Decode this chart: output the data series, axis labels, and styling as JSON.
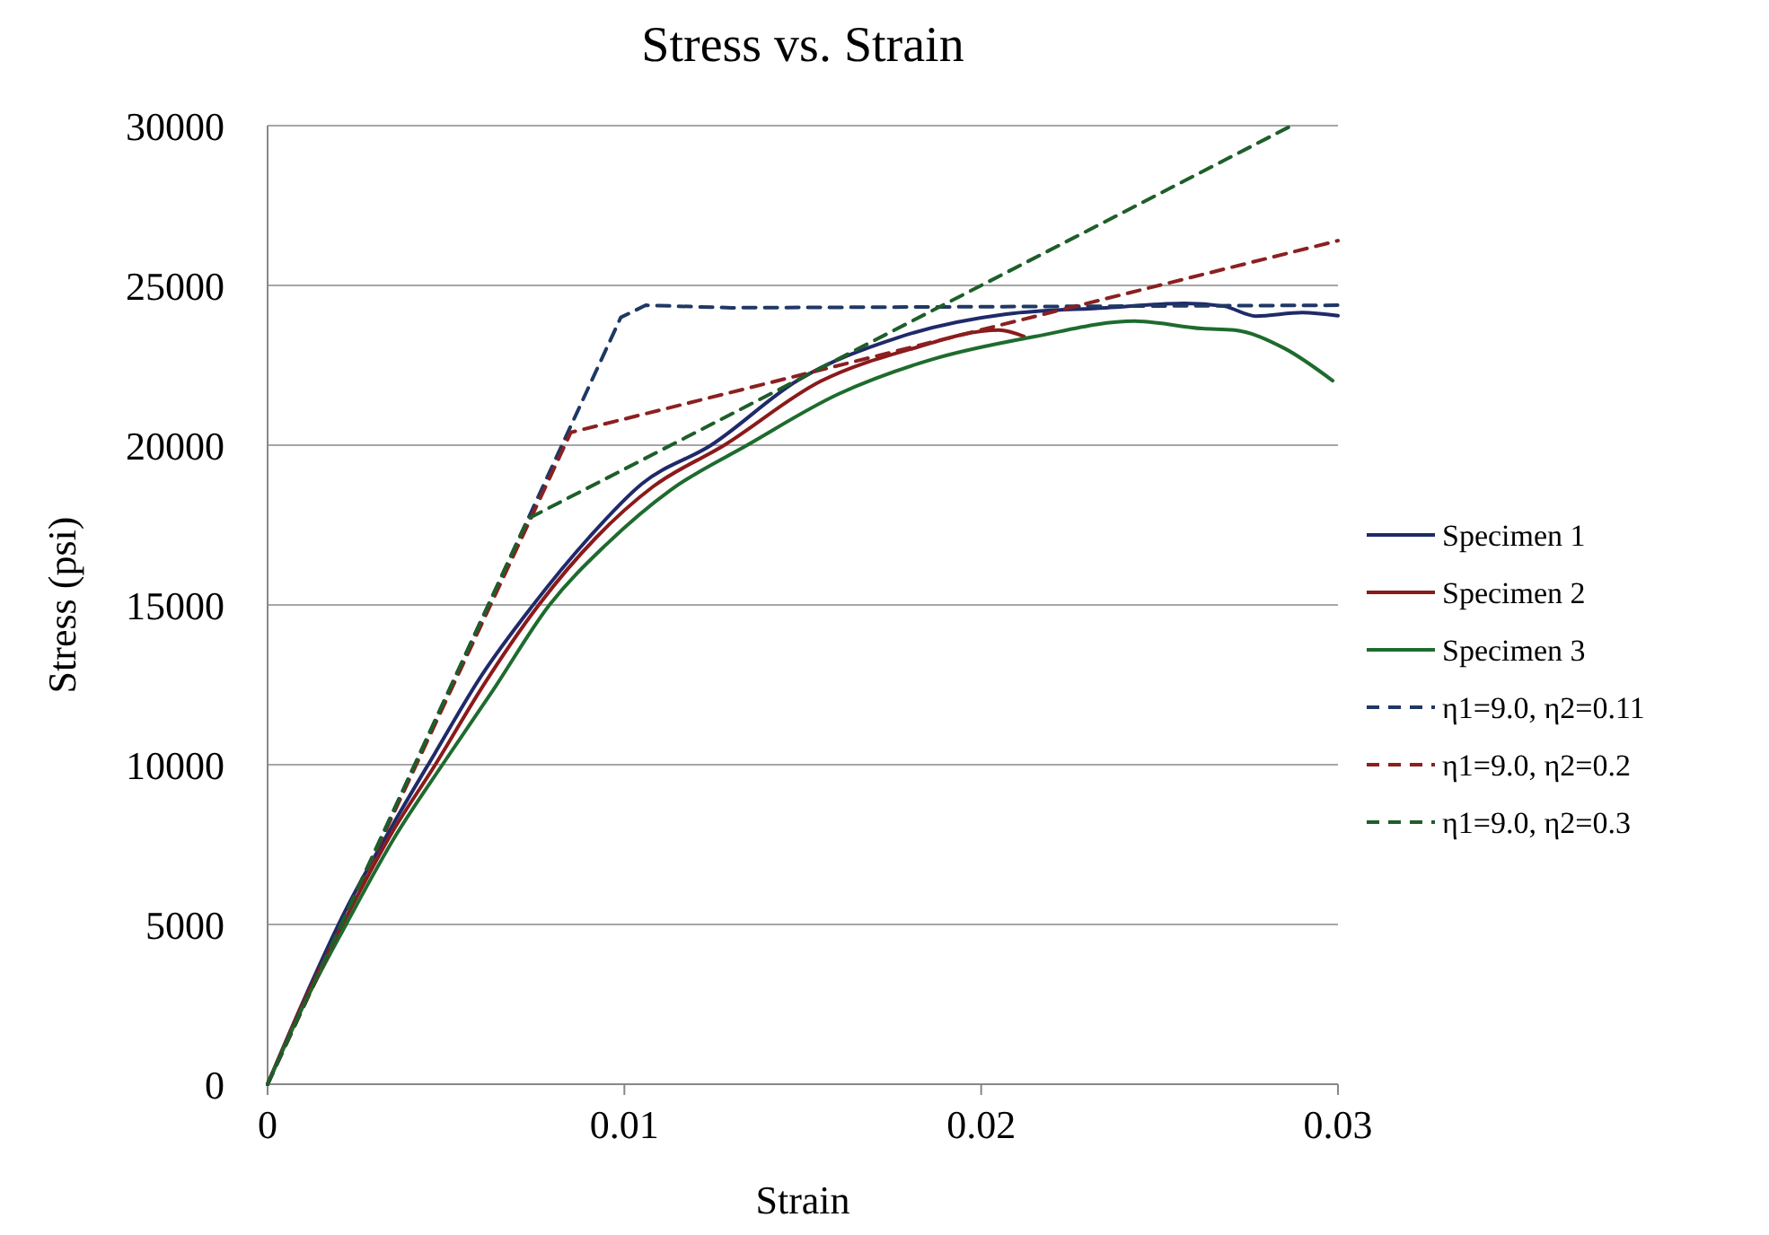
{
  "chart_data": {
    "type": "line",
    "title": "Stress vs. Strain",
    "xlabel": "Strain",
    "ylabel": "Stress (psi)",
    "xlim": [
      0,
      0.03
    ],
    "xticks": [
      0,
      0.01,
      0.02,
      0.03
    ],
    "ylim": [
      0,
      30000
    ],
    "yticks": [
      0,
      5000,
      10000,
      15000,
      20000,
      25000,
      30000
    ],
    "grid": "y",
    "legend": "right",
    "series": [
      {
        "name": "Specimen 1",
        "color": "#1f2a6b",
        "line_style": "solid",
        "x": [
          0,
          0.001,
          0.00216,
          0.0035,
          0.00468,
          0.006,
          0.0074,
          0.009,
          0.0105,
          0.01243,
          0.01485,
          0.01767,
          0.0207,
          0.0235,
          0.0257,
          0.0268,
          0.0277,
          0.029,
          0.03
        ],
        "values": [
          0,
          2600,
          5390,
          8100,
          10340,
          12800,
          14940,
          17100,
          18800,
          20000,
          22020,
          23370,
          24100,
          24300,
          24440,
          24350,
          24040,
          24150,
          24050
        ]
      },
      {
        "name": "Specimen 2",
        "color": "#8b1a1a",
        "line_style": "solid",
        "x": [
          0,
          0.001,
          0.0021,
          0.0035,
          0.0047,
          0.006,
          0.0076,
          0.0092,
          0.0108,
          0.0128,
          0.0155,
          0.018,
          0.0205,
          0.0212
        ],
        "values": [
          0,
          2550,
          5000,
          7900,
          10000,
          12400,
          15000,
          17100,
          18700,
          20000,
          22000,
          23000,
          23600,
          23400
        ]
      },
      {
        "name": "Specimen 3",
        "color": "#1e6b2e",
        "line_style": "solid",
        "x": [
          0,
          0.001,
          0.0022,
          0.0036,
          0.0049,
          0.0063,
          0.0079,
          0.0095,
          0.0113,
          0.01344,
          0.016,
          0.01867,
          0.0215,
          0.0243,
          0.0262,
          0.0271,
          0.0285,
          0.02985
        ],
        "values": [
          0,
          2450,
          5000,
          7800,
          10000,
          12300,
          15000,
          16900,
          18600,
          20000,
          21600,
          22700,
          23400,
          23880,
          23650,
          23600,
          23030,
          22020
        ]
      },
      {
        "name": "η1=9.0, η2=0.11",
        "color": "#1f3864",
        "line_style": "dashed",
        "x": [
          0,
          0.0099,
          0.0106,
          0.013,
          0.03
        ],
        "values": [
          0,
          24000,
          24380,
          24300,
          24380
        ]
      },
      {
        "name": "η1=9.0, η2=0.2",
        "color": "#8b2020",
        "line_style": "dashed",
        "x": [
          0,
          0.0085,
          0.03
        ],
        "values": [
          0,
          20400,
          26400
        ]
      },
      {
        "name": "η1=9.0, η2=0.3",
        "color": "#1e5e2a",
        "line_style": "dashed",
        "x": [
          0,
          0.0073,
          0.0287
        ],
        "values": [
          0,
          17700,
          30000
        ]
      }
    ]
  }
}
